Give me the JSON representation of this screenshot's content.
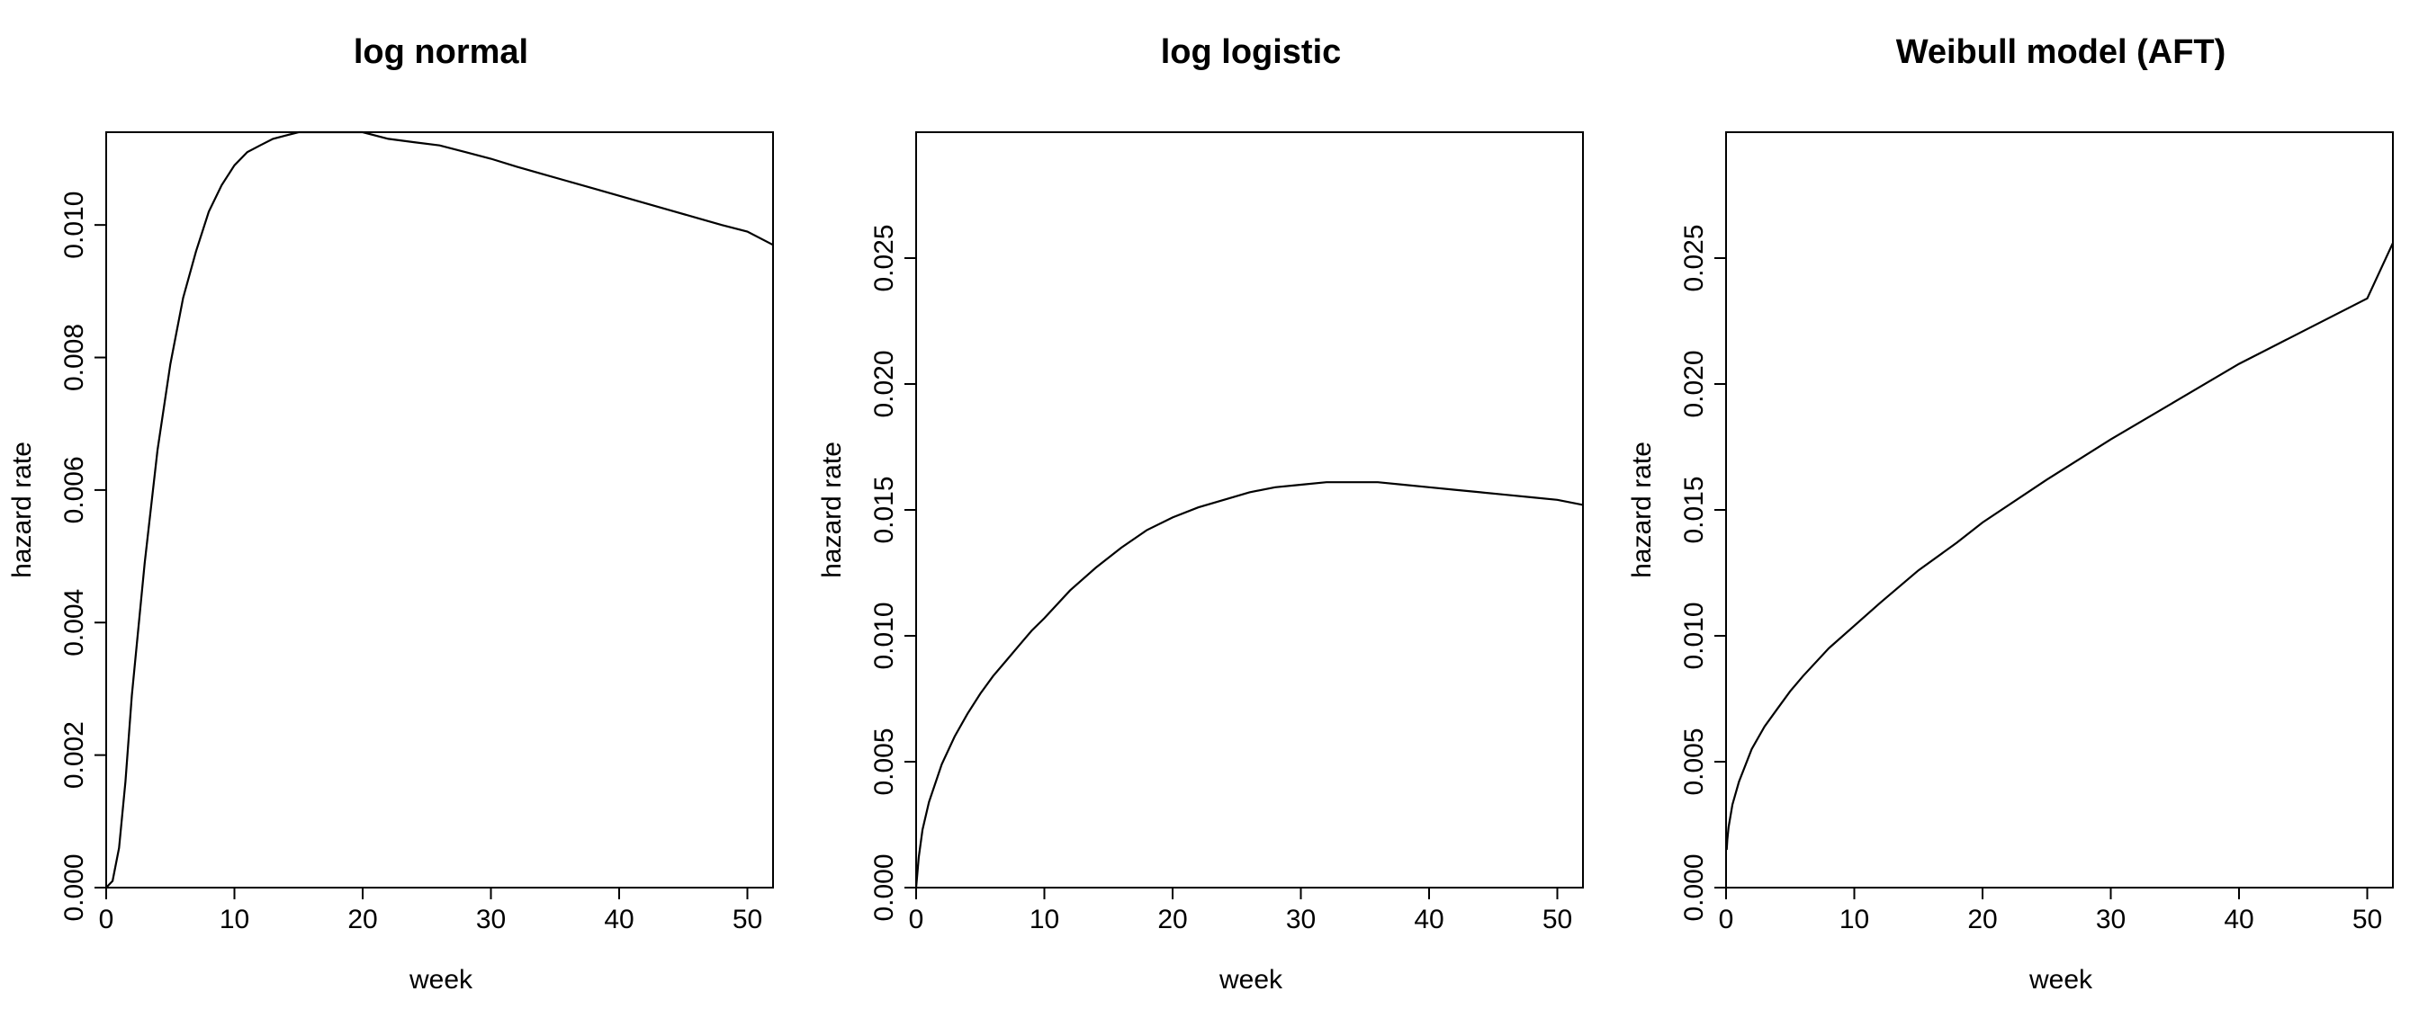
{
  "chart_data": [
    {
      "type": "line",
      "title": "log normal",
      "xlabel": "week",
      "ylabel": "hazard rate",
      "xlim": [
        0,
        52
      ],
      "ylim": [
        0,
        0.0114
      ],
      "xticks": [
        0,
        10,
        20,
        30,
        40,
        50
      ],
      "xtick_labels": [
        "0",
        "10",
        "20",
        "30",
        "40",
        "50"
      ],
      "yticks": [
        0,
        0.002,
        0.004,
        0.006,
        0.008,
        0.01
      ],
      "ytick_labels": [
        "0.000",
        "0.002",
        "0.004",
        "0.006",
        "0.008",
        "0.010"
      ],
      "grid": false,
      "series": [
        {
          "x": [
            0,
            0.5,
            1,
            1.5,
            2,
            3,
            4,
            5,
            6,
            7,
            8,
            9,
            10,
            11,
            12,
            13,
            14,
            15,
            16,
            17,
            18,
            19,
            20,
            22,
            24,
            26,
            28,
            30,
            32,
            34,
            36,
            38,
            40,
            42,
            44,
            46,
            48,
            50,
            52
          ],
          "y": [
            0,
            0.0001,
            0.0006,
            0.0016,
            0.0029,
            0.0049,
            0.0066,
            0.0079,
            0.0089,
            0.0096,
            0.0102,
            0.0106,
            0.0109,
            0.0111,
            0.0112,
            0.0113,
            0.01135,
            0.0114,
            0.0114,
            0.0114,
            0.0114,
            0.0114,
            0.0114,
            0.0113,
            0.01125,
            0.0112,
            0.0111,
            0.011,
            0.01088,
            0.01077,
            0.01066,
            0.01055,
            0.01044,
            0.01033,
            0.01022,
            0.01011,
            0.01,
            0.0099,
            0.0097
          ]
        }
      ]
    },
    {
      "type": "line",
      "title": "log logistic",
      "xlabel": "week",
      "ylabel": "hazard rate",
      "xlim": [
        0,
        52
      ],
      "ylim": [
        0,
        0.03
      ],
      "xticks": [
        0,
        10,
        20,
        30,
        40,
        50
      ],
      "xtick_labels": [
        "0",
        "10",
        "20",
        "30",
        "40",
        "50"
      ],
      "yticks": [
        0,
        0.005,
        0.01,
        0.015,
        0.02,
        0.025
      ],
      "ytick_labels": [
        "0.000",
        "0.005",
        "0.010",
        "0.015",
        "0.020",
        "0.025"
      ],
      "grid": false,
      "series": [
        {
          "x": [
            0,
            0.2,
            0.5,
            1,
            2,
            3,
            4,
            5,
            6,
            7,
            8,
            9,
            10,
            12,
            14,
            16,
            18,
            20,
            22,
            24,
            26,
            28,
            30,
            32,
            34,
            36,
            38,
            40,
            42,
            44,
            46,
            48,
            50,
            52
          ],
          "y": [
            0,
            0.0012,
            0.0023,
            0.0034,
            0.0049,
            0.006,
            0.0069,
            0.0077,
            0.0084,
            0.009,
            0.0096,
            0.0102,
            0.0107,
            0.0118,
            0.0127,
            0.0135,
            0.0142,
            0.0147,
            0.0151,
            0.0154,
            0.0157,
            0.0159,
            0.016,
            0.0161,
            0.0161,
            0.0161,
            0.016,
            0.0159,
            0.0158,
            0.0157,
            0.0156,
            0.0155,
            0.0154,
            0.0152
          ]
        }
      ]
    },
    {
      "type": "line",
      "title": "Weibull model (AFT)",
      "xlabel": "week",
      "ylabel": "hazard rate",
      "xlim": [
        0,
        52
      ],
      "ylim": [
        0,
        0.03
      ],
      "xticks": [
        0,
        10,
        20,
        30,
        40,
        50
      ],
      "xtick_labels": [
        "0",
        "10",
        "20",
        "30",
        "40",
        "50"
      ],
      "yticks": [
        0,
        0.005,
        0.01,
        0.015,
        0.02,
        0.025
      ],
      "ytick_labels": [
        "0.000",
        "0.005",
        "0.010",
        "0.015",
        "0.020",
        "0.025"
      ],
      "grid": false,
      "series": [
        {
          "x": [
            0.05,
            0.1,
            0.2,
            0.5,
            1,
            2,
            3,
            4,
            5,
            6,
            8,
            10,
            12,
            15,
            18,
            20,
            25,
            30,
            35,
            40,
            45,
            50,
            52
          ],
          "y": [
            0.0015,
            0.0019,
            0.0024,
            0.0033,
            0.0042,
            0.0055,
            0.0064,
            0.0071,
            0.0078,
            0.0084,
            0.0095,
            0.0104,
            0.0113,
            0.0126,
            0.0137,
            0.0145,
            0.0162,
            0.0178,
            0.0193,
            0.0208,
            0.0221,
            0.0234,
            0.0256
          ]
        }
      ]
    }
  ]
}
